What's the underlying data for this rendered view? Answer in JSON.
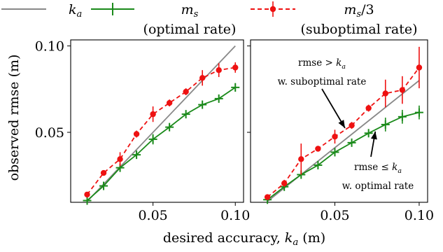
{
  "chart_data": {
    "type": "line",
    "xlabel": "desired accuracy, k_a (m)",
    "ylabel": "observed rmse (m)",
    "xlim": [
      0.0,
      0.105
    ],
    "ylim": [
      0.0095,
      0.1035
    ],
    "xticks": [
      0.05,
      0.1
    ],
    "xtick_labels": [
      "0.05",
      "0.10"
    ],
    "yticks": [
      0.05,
      0.1
    ],
    "ytick_labels": [
      "0.05",
      "0.10"
    ],
    "grid": false,
    "legend_position": "top",
    "legend": [
      {
        "key": "ka",
        "symbol": "k",
        "subscript": "a",
        "line1": "",
        "line2": ""
      },
      {
        "key": "ms",
        "symbol": "m",
        "subscript": "s",
        "suffix": "",
        "line2": "(optimal rate)"
      },
      {
        "key": "ms3",
        "symbol": "m",
        "subscript": "s",
        "suffix": "/3",
        "line2": "(suboptimal rate)"
      }
    ],
    "colors": {
      "ka": "#888888",
      "ms": "#1a8a1a",
      "ms3": "#ee1111"
    },
    "panels": [
      {
        "name": "left",
        "series": [
          {
            "key": "ka",
            "x": [
              0.01,
              0.1
            ],
            "y": [
              0.01,
              0.1
            ]
          },
          {
            "key": "ms",
            "x": [
              0.01,
              0.02,
              0.03,
              0.04,
              0.05,
              0.06,
              0.07,
              0.08,
              0.09,
              0.1
            ],
            "y": [
              0.0105,
              0.019,
              0.0295,
              0.037,
              0.046,
              0.053,
              0.0605,
              0.066,
              0.0695,
              0.076
            ],
            "err": [
              0.001,
              0.0015,
              0.002,
              0.0015,
              0.003,
              0.0015,
              0.0015,
              0.0012,
              0.002,
              0.0025
            ]
          },
          {
            "key": "ms3",
            "x": [
              0.01,
              0.02,
              0.03,
              0.04,
              0.05,
              0.06,
              0.07,
              0.08,
              0.09,
              0.1
            ],
            "y": [
              0.014,
              0.0265,
              0.0345,
              0.049,
              0.0605,
              0.067,
              0.0735,
              0.0815,
              0.086,
              0.0875
            ],
            "err": [
              0.0015,
              0.0015,
              0.004,
              0.002,
              0.0045,
              0.002,
              0.002,
              0.0045,
              0.004,
              0.003
            ]
          }
        ],
        "annotations": []
      },
      {
        "name": "right",
        "series": [
          {
            "key": "ka",
            "x": [
              0.01,
              0.1
            ],
            "y": [
              0.01,
              0.08
            ]
          },
          {
            "key": "ms",
            "x": [
              0.01,
              0.02,
              0.03,
              0.04,
              0.05,
              0.06,
              0.07,
              0.08,
              0.09,
              0.1
            ],
            "y": [
              0.011,
              0.0185,
              0.0255,
              0.031,
              0.0385,
              0.044,
              0.0495,
              0.0545,
              0.059,
              0.0615
            ],
            "err": [
              0.001,
              0.0015,
              0.0015,
              0.0012,
              0.0015,
              0.0015,
              0.0015,
              0.004,
              0.004,
              0.004
            ]
          },
          {
            "key": "ms3",
            "x": [
              0.01,
              0.02,
              0.03,
              0.04,
              0.05,
              0.06,
              0.07,
              0.08,
              0.09,
              0.1
            ],
            "y": [
              0.0125,
              0.0205,
              0.0345,
              0.0405,
              0.0475,
              0.054,
              0.064,
              0.0725,
              0.0745,
              0.0875
            ],
            "err": [
              0.0015,
              0.002,
              0.009,
              0.0015,
              0.004,
              0.002,
              0.002,
              0.008,
              0.008,
              0.012
            ]
          }
        ],
        "annotations": [
          {
            "line1": "rmse > k_a",
            "line2": "w. suboptimal rate",
            "point": [
              0.056,
              0.0525
            ],
            "anchor": "top"
          },
          {
            "line1": "rmse ≤ k_a",
            "line2": "w. optimal rate",
            "point": [
              0.074,
              0.0505
            ],
            "anchor": "bottom"
          }
        ]
      }
    ]
  }
}
